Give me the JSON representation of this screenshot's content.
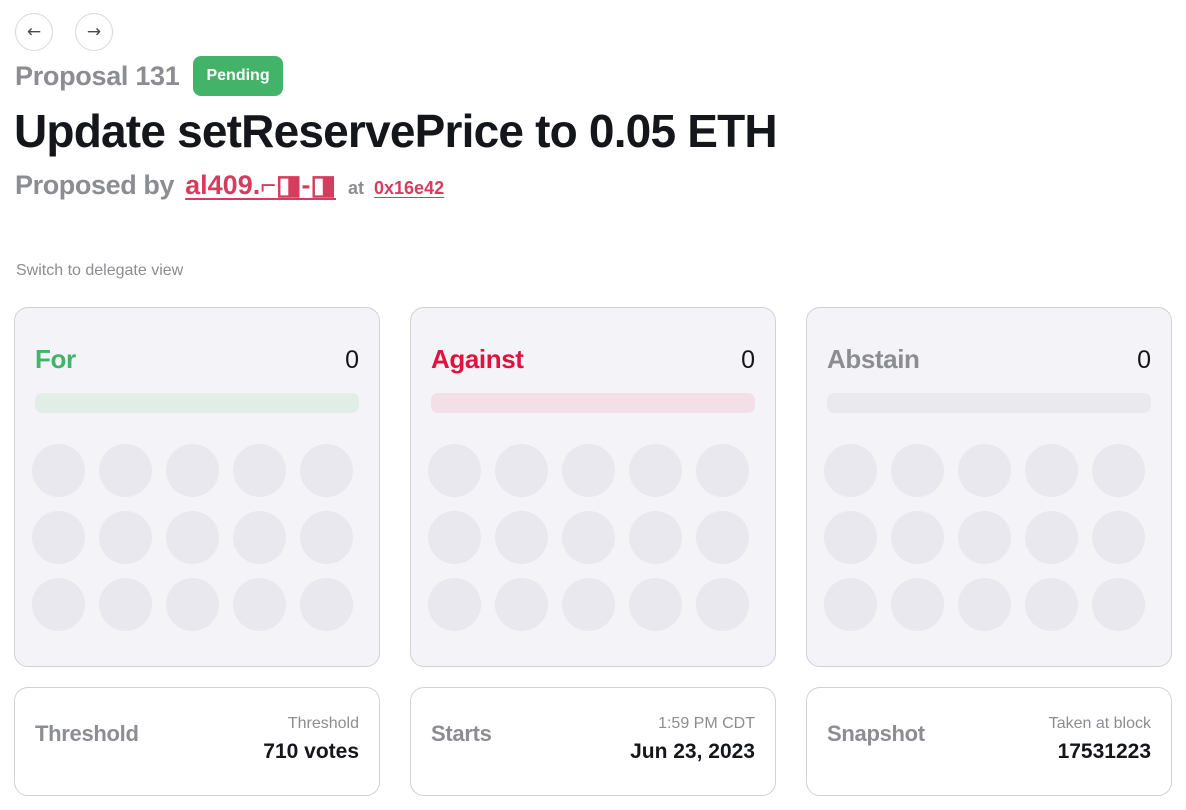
{
  "nav": {
    "back_icon": "←",
    "forward_icon": "→"
  },
  "proposal": {
    "number_label": "Proposal 131",
    "status": "Pending",
    "title": "Update setReservePrice to 0.05 ETH",
    "proposed_by_label": "Proposed by",
    "proposer": "al409.⌐◨-◨",
    "at_label": "at",
    "tx": "0x16e42"
  },
  "delegate_view_label": "Switch to delegate view",
  "votes": [
    {
      "label": "For",
      "count": "0",
      "color": "#43b369",
      "bar_color": "#e2ede8"
    },
    {
      "label": "Against",
      "count": "0",
      "color": "#e0123f",
      "bar_color": "#f2e0e6"
    },
    {
      "label": "Abstain",
      "count": "0",
      "color": "#8c8d92",
      "bar_color": "#e9e9ee"
    }
  ],
  "info": {
    "threshold": {
      "label": "Threshold",
      "sub": "Threshold",
      "value": "710 votes"
    },
    "starts": {
      "label": "Starts",
      "sub": "1:59 PM CDT",
      "value": "Jun 23, 2023"
    },
    "snapshot": {
      "label": "Snapshot",
      "sub": "Taken at block",
      "value": "17531223"
    }
  },
  "colors": {
    "accent_link": "#d63c5e",
    "pending_badge": "#43b369",
    "muted_text": "#8c8d92"
  }
}
